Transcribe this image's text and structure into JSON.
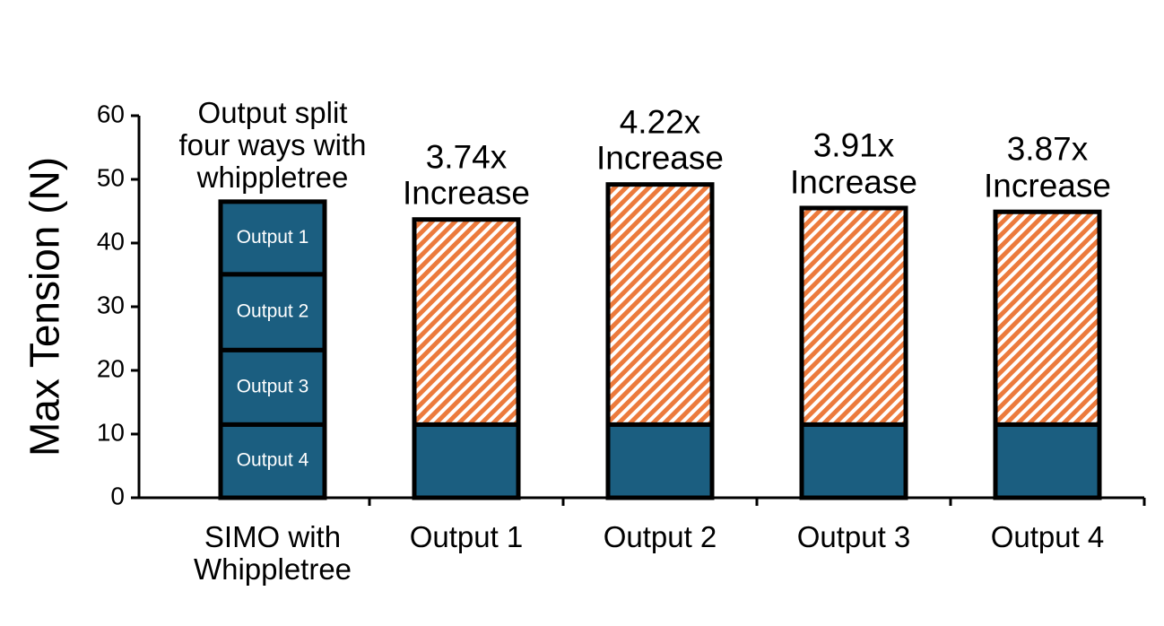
{
  "chart_data": {
    "type": "stacked_bar",
    "ylabel": "Max Tension (N)",
    "ylim": [
      0,
      60
    ],
    "yticks": [
      0,
      10,
      20,
      30,
      40,
      50,
      60
    ],
    "categories": [
      "SIMO with Whippletree",
      "Output 1",
      "Output 2",
      "Output 3",
      "Output 4"
    ],
    "annotations": [
      "Output split four ways with whippletree",
      "3.74x Increase",
      "4.22x Increase",
      "3.91x Increase",
      "3.87x Increase"
    ],
    "segments": {
      "labels": [
        "Output 1",
        "Output 2",
        "Output 3",
        "Output 4"
      ],
      "values": [
        11.4,
        11.9,
        11.7,
        11.5
      ],
      "color": "#1b5e80"
    },
    "series": [
      {
        "color": "#1b5e80",
        "pattern": "solid",
        "values": [
          null,
          11.5,
          11.5,
          11.5,
          11.5
        ]
      },
      {
        "color": "#ec7a3c",
        "pattern": "hatch",
        "values": [
          null,
          32.2,
          37.7,
          34.0,
          33.4
        ]
      }
    ]
  }
}
